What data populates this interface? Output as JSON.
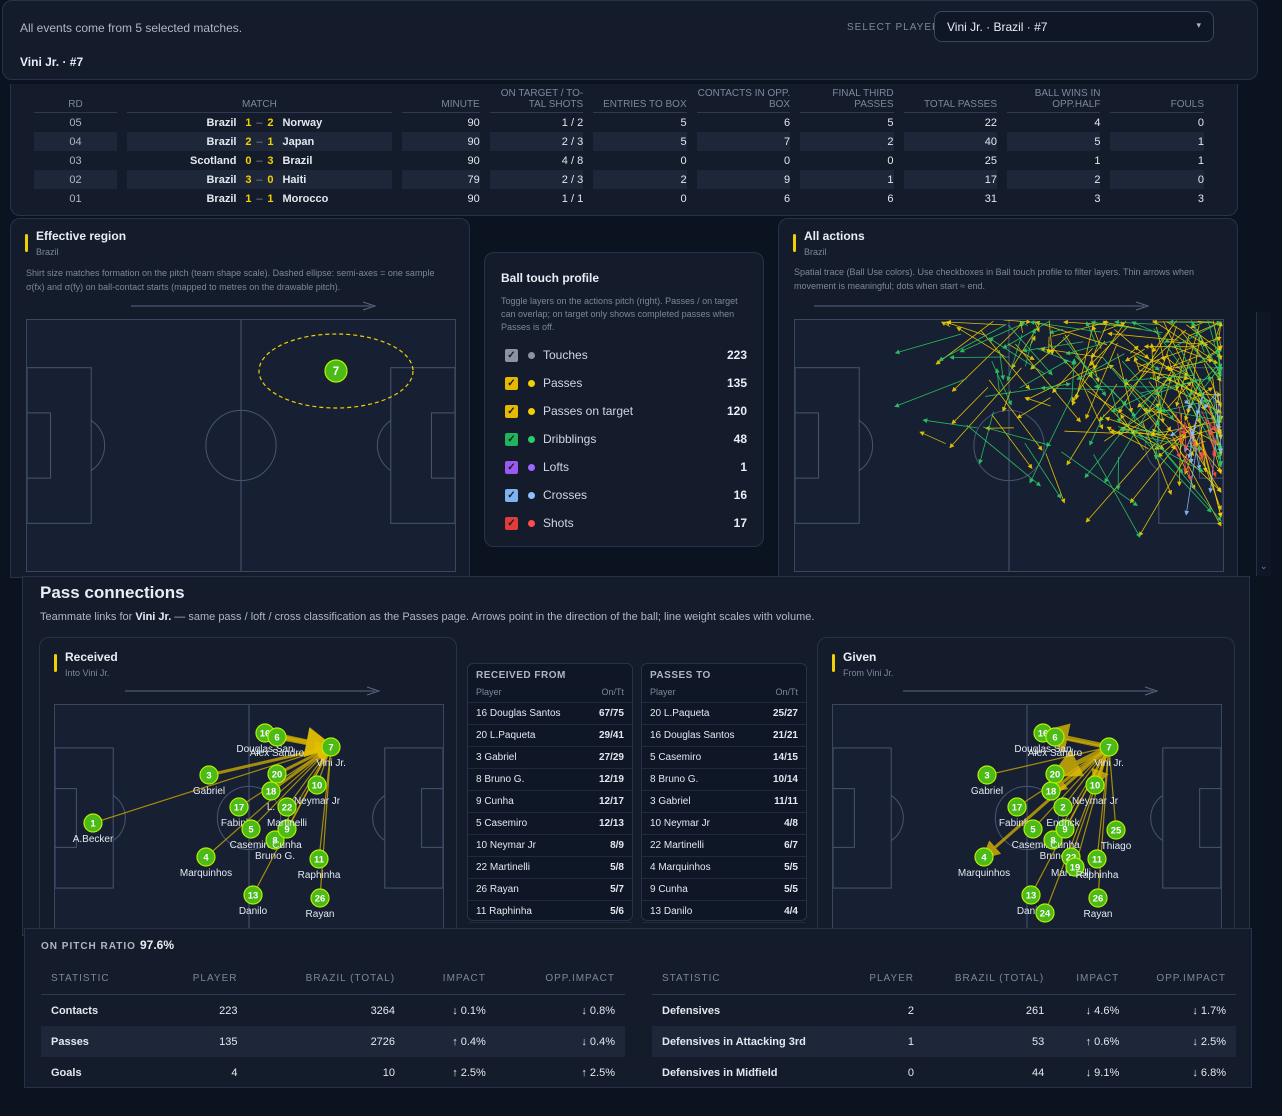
{
  "header": {
    "info": "All events come from 5 selected matches.",
    "player_title": "Vini Jr. · #7",
    "select_label": "SELECT PLAYER",
    "select_value": "Vini Jr. · Brazil · #7",
    "select_arrow": "▾"
  },
  "matches": {
    "headers": [
      "RD",
      "MATCH",
      "MINUTE",
      "ON TARGET / TO-TAL SHOTS",
      "ENTRIES TO BOX",
      "CONTACTS IN OPP. BOX",
      "FINAL THIRD PASSES",
      "TOTAL PASSES",
      "BALL WINS IN OPP.HALF",
      "FOULS"
    ],
    "rows": [
      {
        "rd": "05",
        "home": "Brazil",
        "hs": "1",
        "as": "2",
        "away": "Norway",
        "min": "90",
        "shots": "1 / 2",
        "entries": "5",
        "contacts": "6",
        "final": "5",
        "passes": "22",
        "wins": "4",
        "fouls": "0"
      },
      {
        "rd": "04",
        "home": "Brazil",
        "hs": "2",
        "as": "1",
        "away": "Japan",
        "min": "90",
        "shots": "2 / 3",
        "entries": "5",
        "contacts": "7",
        "final": "2",
        "passes": "40",
        "wins": "5",
        "fouls": "1"
      },
      {
        "rd": "03",
        "home": "Scotland",
        "hs": "0",
        "as": "3",
        "away": "Brazil",
        "min": "90",
        "shots": "4 / 8",
        "entries": "0",
        "contacts": "0",
        "final": "0",
        "passes": "25",
        "wins": "1",
        "fouls": "1"
      },
      {
        "rd": "02",
        "home": "Brazil",
        "hs": "3",
        "as": "0",
        "away": "Haiti",
        "min": "79",
        "shots": "2 / 3",
        "entries": "2",
        "contacts": "9",
        "final": "1",
        "passes": "17",
        "wins": "2",
        "fouls": "0"
      },
      {
        "rd": "01",
        "home": "Brazil",
        "hs": "1",
        "as": "1",
        "away": "Morocco",
        "min": "90",
        "shots": "1 / 1",
        "entries": "0",
        "contacts": "6",
        "final": "6",
        "passes": "31",
        "wins": "3",
        "fouls": "3"
      }
    ],
    "dash": "–"
  },
  "effective": {
    "title": "Effective region",
    "team": "Brazil",
    "desc": "Shirt size matches formation on the pitch (team shape scale). Dashed ellipse: semi-axes = one sample σ(fx) and σ(fy) on ball-contact starts (mapped to metres on the drawable pitch).",
    "shirt": "7"
  },
  "touch": {
    "title": "Ball touch profile",
    "desc": "Toggle layers on the actions pitch (right). Passes / on target can overlap; on target only shows completed passes when Passes is off.",
    "check": "✓",
    "rows": [
      {
        "label": "Touches",
        "count": "223",
        "box": "#8b93a3",
        "dot": "#8b93a3"
      },
      {
        "label": "Passes",
        "count": "135",
        "box": "#e6b800",
        "dot": "#f2cf00"
      },
      {
        "label": "Passes on target",
        "count": "120",
        "box": "#e6b800",
        "dot": "#f2cf00"
      },
      {
        "label": "Dribblings",
        "count": "48",
        "box": "#22b35a",
        "dot": "#2ccc66"
      },
      {
        "label": "Lofts",
        "count": "1",
        "box": "#9b59f0",
        "dot": "#a066ff"
      },
      {
        "label": "Crosses",
        "count": "16",
        "box": "#7fb3f0",
        "dot": "#8cc0ff"
      },
      {
        "label": "Shots",
        "count": "17",
        "box": "#e23b3b",
        "dot": "#ff4d4d"
      }
    ]
  },
  "actions": {
    "title": "All actions",
    "team": "Brazil",
    "desc": "Spatial trace (Ball Use colors). Use checkboxes in Ball touch profile to filter layers. Thin arrows when movement is meaningful; dots when start ≈ end."
  },
  "pass_conn": {
    "title": "Pass connections",
    "desc_pre": "Teammate links for ",
    "desc_player": "Vini Jr.",
    "desc_post": " — same pass / loft / cross classification as the Passes page. Arrows point in the direction of the ball; line weight scales with volume.",
    "received_title": "Received",
    "received_sub": "Into Vini Jr.",
    "given_title": "Given",
    "given_sub": "From Vini Jr.",
    "received_from": {
      "title": "RECEIVED FROM",
      "col1": "Player",
      "col2": "On/Tt",
      "rows": [
        [
          "16 Douglas Santos",
          "67/75"
        ],
        [
          "20 L.Paqueta",
          "29/41"
        ],
        [
          "3 Gabriel",
          "27/29"
        ],
        [
          "8 Bruno G.",
          "12/19"
        ],
        [
          "9 Cunha",
          "12/17"
        ],
        [
          "5 Casemiro",
          "12/13"
        ],
        [
          "10 Neymar Jr",
          "8/9"
        ],
        [
          "22 Martinelli",
          "5/8"
        ],
        [
          "26 Rayan",
          "5/7"
        ],
        [
          "11 Raphinha",
          "5/6"
        ]
      ]
    },
    "passes_to": {
      "title": "PASSES TO",
      "col1": "Player",
      "col2": "On/Tt",
      "rows": [
        [
          "20 L.Paqueta",
          "25/27"
        ],
        [
          "16 Douglas Santos",
          "21/21"
        ],
        [
          "5 Casemiro",
          "14/15"
        ],
        [
          "8 Bruno G.",
          "10/14"
        ],
        [
          "3 Gabriel",
          "11/11"
        ],
        [
          "10 Neymar Jr",
          "4/8"
        ],
        [
          "22 Martinelli",
          "6/7"
        ],
        [
          "4 Marquinhos",
          "5/5"
        ],
        [
          "9 Cunha",
          "5/5"
        ],
        [
          "13 Danilo",
          "4/4"
        ]
      ]
    },
    "received_players": [
      {
        "n": "1",
        "name": "A.Becker"
      },
      {
        "n": "3",
        "name": "Gabriel"
      },
      {
        "n": "4",
        "name": "Marquinhos"
      },
      {
        "n": "13",
        "name": "Danilo"
      },
      {
        "n": "17",
        "name": "Fabinho"
      },
      {
        "n": "5",
        "name": "Casemiro"
      },
      {
        "n": "8",
        "name": "Bruno G."
      },
      {
        "n": "9",
        "name": "Cunha"
      },
      {
        "n": "18",
        "name": "L."
      },
      {
        "n": "22",
        "name": "Martinelli"
      },
      {
        "n": "10",
        "name": "Neymar Jr"
      },
      {
        "n": "20",
        "name": ""
      },
      {
        "n": "16",
        "name": "Douglas San"
      },
      {
        "n": "6",
        "name": "Alex Sandro"
      },
      {
        "n": "11",
        "name": "Raphinha"
      },
      {
        "n": "26",
        "name": "Rayan"
      },
      {
        "n": "7",
        "name": "Vini Jr."
      }
    ],
    "given_players": [
      {
        "n": "3",
        "name": "Gabriel"
      },
      {
        "n": "4",
        "name": "Marquinhos"
      },
      {
        "n": "13",
        "name": "Danilo"
      },
      {
        "n": "24",
        "name": ""
      },
      {
        "n": "17",
        "name": "Fabinho"
      },
      {
        "n": "5",
        "name": "Casemiro"
      },
      {
        "n": "8",
        "name": "Bruno"
      },
      {
        "n": "9",
        "name": "Cunha"
      },
      {
        "n": "18",
        "name": ""
      },
      {
        "n": "2",
        "name": "Endrick"
      },
      {
        "n": "22",
        "name": "Martinelli"
      },
      {
        "n": "10",
        "name": "Neymar Jr"
      },
      {
        "n": "20",
        "name": ""
      },
      {
        "n": "16",
        "name": "Douglas San"
      },
      {
        "n": "6",
        "name": "Alex Sandro"
      },
      {
        "n": "19",
        "name": ""
      },
      {
        "n": "11",
        "name": "Raphinha"
      },
      {
        "n": "25",
        "name": "Thiago"
      },
      {
        "n": "26",
        "name": "Rayan"
      },
      {
        "n": "7",
        "name": "Vini Jr."
      }
    ]
  },
  "stats": {
    "ratio_label": "ON PITCH RATIO",
    "ratio_value": "97.6%",
    "headers": [
      "STATISTIC",
      "PLAYER",
      "BRAZIL (TOTAL)",
      "IMPACT",
      "OPP.IMPACT"
    ],
    "left": [
      {
        "stat": "Contacts",
        "player": "223",
        "total": "3264",
        "impact": "↓ 0.1%",
        "impact_dir": "down",
        "opp": "↓ 0.8%",
        "opp_dir": "down"
      },
      {
        "stat": "Passes",
        "player": "135",
        "total": "2726",
        "impact": "↑ 0.4%",
        "impact_dir": "up",
        "opp": "↓ 0.4%",
        "opp_dir": "down"
      },
      {
        "stat": "Goals",
        "player": "4",
        "total": "10",
        "impact": "↑ 2.5%",
        "impact_dir": "up",
        "opp": "↑ 2.5%",
        "opp_dir": "up"
      }
    ],
    "right": [
      {
        "stat": "Defensives",
        "player": "2",
        "total": "261",
        "impact": "↓ 4.6%",
        "impact_dir": "down",
        "opp": "↓ 1.7%",
        "opp_dir": "down"
      },
      {
        "stat": "Defensives in Attacking 3rd",
        "player": "1",
        "total": "53",
        "impact": "↑ 0.6%",
        "impact_dir": "up",
        "opp": "↓ 2.5%",
        "opp_dir": "down"
      },
      {
        "stat": "Defensives in Midfield",
        "player": "0",
        "total": "44",
        "impact": "↓ 9.1%",
        "impact_dir": "down",
        "opp": "↓ 6.8%",
        "opp_dir": "down"
      }
    ]
  },
  "colors": {
    "accent": "#f2cf00",
    "up": "#35d07f",
    "down": "#ff5c5c",
    "pass": "#f2cf00",
    "dribble": "#2ccc66",
    "cross": "#8cc0ff",
    "shot": "#ff4d4d"
  }
}
